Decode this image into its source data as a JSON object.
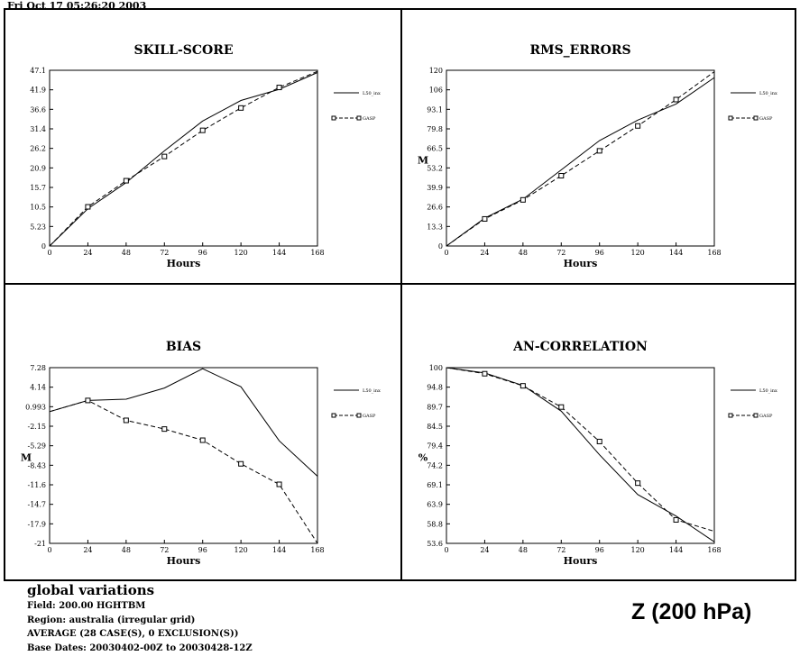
{
  "timestamp": "Fri Oct 17 05:26:20 2003",
  "footer": {
    "title": "global variations",
    "field": "Field: 200.00 HGHTBM",
    "region": "Region: australia (irregular grid)",
    "average": "AVERAGE (28 CASE(S), 0 EXCLUSION(S))",
    "base_dates": "Base Dates: 20030402-00Z to 20030428-12Z",
    "big_label": "Z (200 hPa)"
  },
  "legend": {
    "solid": "L50_inx",
    "dashed": "GASP"
  },
  "chart_data": [
    {
      "type": "line",
      "title": "SKILL-SCORE",
      "xlabel": "Hours",
      "ylabel": "",
      "x": [
        0,
        24,
        48,
        72,
        96,
        120,
        144,
        168
      ],
      "xticks": [
        "0",
        "24",
        "48",
        "72",
        "96",
        "120",
        "144",
        "168"
      ],
      "ylim": [
        0,
        47.1
      ],
      "yticks": [
        "0",
        "5.23",
        "10.5",
        "15.7",
        "20.9",
        "26.2",
        "31.4",
        "36.6",
        "41.9",
        "47.1"
      ],
      "series": [
        {
          "name": "L50_inx",
          "style": "solid",
          "values": [
            0,
            10.0,
            17.0,
            25.5,
            33.5,
            39.0,
            42.0,
            46.5
          ]
        },
        {
          "name": "GASP",
          "style": "dashed",
          "values": [
            0,
            10.5,
            17.5,
            24.0,
            31.0,
            37.0,
            42.5,
            46.8
          ]
        }
      ]
    },
    {
      "type": "line",
      "title": "RMS_ERRORS",
      "xlabel": "Hours",
      "ylabel": "M",
      "x": [
        0,
        24,
        48,
        72,
        96,
        120,
        144,
        168
      ],
      "xticks": [
        "0",
        "24",
        "48",
        "72",
        "96",
        "120",
        "144",
        "168"
      ],
      "ylim": [
        0,
        120
      ],
      "yticks": [
        "0",
        "13.3",
        "26.6",
        "39.9",
        "53.2",
        "66.5",
        "79.8",
        "93.1",
        "106",
        "120"
      ],
      "series": [
        {
          "name": "L50_inx",
          "style": "solid",
          "values": [
            0,
            19.0,
            32.0,
            52.0,
            72.0,
            86.0,
            97.0,
            115.0
          ]
        },
        {
          "name": "GASP",
          "style": "dashed",
          "values": [
            0,
            18.5,
            31.5,
            48.0,
            65.0,
            82.0,
            100.0,
            119.0
          ]
        }
      ]
    },
    {
      "type": "line",
      "title": "BIAS",
      "xlabel": "Hours",
      "ylabel": "M",
      "x": [
        0,
        24,
        48,
        72,
        96,
        120,
        144,
        168
      ],
      "xticks": [
        "0",
        "24",
        "48",
        "72",
        "96",
        "120",
        "144",
        "168"
      ],
      "ylim": [
        -21,
        7.28
      ],
      "yticks": [
        "-21",
        "-17.9",
        "-14.7",
        "-11.6",
        "-8.43",
        "-5.29",
        "-2.15",
        "0.993",
        "4.14",
        "7.28"
      ],
      "series": [
        {
          "name": "L50_inx",
          "style": "solid",
          "values": [
            0.2,
            2.0,
            2.2,
            4.0,
            7.1,
            4.2,
            -4.5,
            -10.2
          ]
        },
        {
          "name": "GASP",
          "style": "dashed",
          "values": [
            0.2,
            2.0,
            -1.2,
            -2.6,
            -4.4,
            -8.2,
            -11.5,
            -21.0
          ]
        }
      ]
    },
    {
      "type": "line",
      "title": "AN-CORRELATION",
      "xlabel": "Hours",
      "ylabel": "%",
      "x": [
        0,
        24,
        48,
        72,
        96,
        120,
        144,
        168
      ],
      "xticks": [
        "0",
        "24",
        "48",
        "72",
        "96",
        "120",
        "144",
        "168"
      ],
      "ylim": [
        53.6,
        100
      ],
      "yticks": [
        "53.6",
        "58.8",
        "63.9",
        "69.1",
        "74.2",
        "79.4",
        "84.5",
        "89.7",
        "94.8",
        "100"
      ],
      "series": [
        {
          "name": "L50_inx",
          "style": "solid",
          "values": [
            100,
            98.6,
            95.3,
            88.5,
            77.0,
            66.5,
            60.8,
            54.0
          ]
        },
        {
          "name": "GASP",
          "style": "dashed",
          "values": [
            100,
            98.4,
            95.2,
            89.6,
            80.5,
            69.5,
            59.8,
            56.8
          ]
        }
      ]
    }
  ]
}
